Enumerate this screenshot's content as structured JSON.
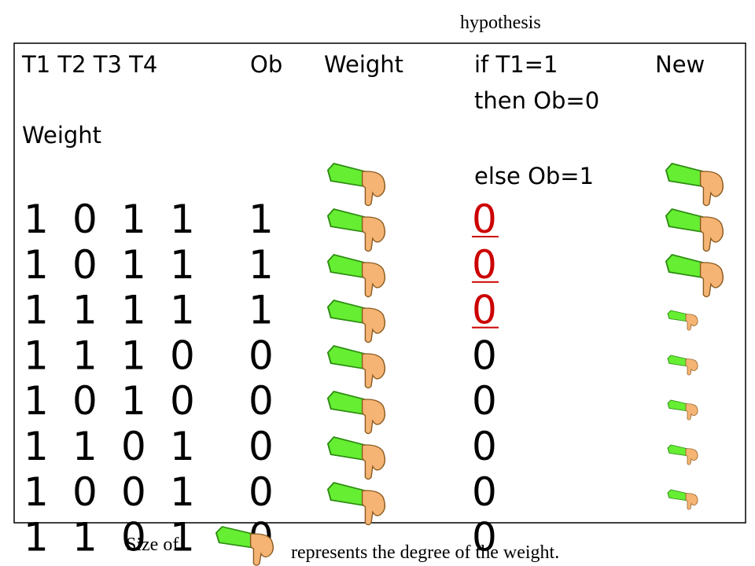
{
  "hypothesis_label": "hypothesis",
  "header": {
    "t_columns": "T1 T2 T3 T4",
    "ob": "Ob",
    "weight": "Weight",
    "rule_line1": "if T1=1",
    "rule_line2": "then Ob=0",
    "new": "New",
    "new_weight": "Weight",
    "rule_line3": "else Ob=1"
  },
  "rows": [
    {
      "t": [
        "1",
        "0",
        "1",
        "1"
      ],
      "ob": "1",
      "hypothesis": "0",
      "hypothesis_color": "#cc0000"
    },
    {
      "t": [
        "1",
        "0",
        "1",
        "1"
      ],
      "ob": "1",
      "hypothesis": "0",
      "hypothesis_color": "#cc0000"
    },
    {
      "t": [
        "1",
        "1",
        "1",
        "1"
      ],
      "ob": "1",
      "hypothesis": "0",
      "hypothesis_color": "#cc0000"
    },
    {
      "t": [
        "1",
        "1",
        "1",
        "0"
      ],
      "ob": "0",
      "hypothesis": "0",
      "hypothesis_color": "#000000"
    },
    {
      "t": [
        "1",
        "0",
        "1",
        "0"
      ],
      "ob": "0",
      "hypothesis": "0",
      "hypothesis_color": "#000000"
    },
    {
      "t": [
        "1",
        "1",
        "0",
        "1"
      ],
      "ob": "0",
      "hypothesis": "0",
      "hypothesis_color": "#000000"
    },
    {
      "t": [
        "1",
        "0",
        "0",
        "1"
      ],
      "ob": "0",
      "hypothesis": "0",
      "hypothesis_color": "#000000"
    },
    {
      "t": [
        "1",
        "1",
        "0",
        "1"
      ],
      "ob": "0",
      "hypothesis": "0",
      "hypothesis_color": "#000000"
    }
  ],
  "footer": {
    "prefix": "Size of",
    "suffix": "represents the degree of the weight."
  }
}
